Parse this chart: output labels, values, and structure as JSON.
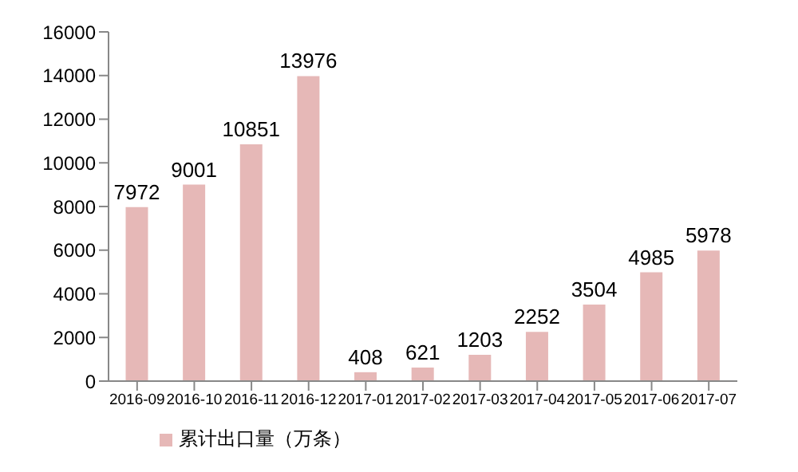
{
  "chart_data": {
    "type": "bar",
    "categories": [
      "2016-09",
      "2016-10",
      "2016-11",
      "2016-12",
      "2017-01",
      "2017-02",
      "2017-03",
      "2017-04",
      "2017-05",
      "2017-06",
      "2017-07"
    ],
    "series": [
      {
        "name": "累计出口量（万条）",
        "color": "#e6b8b7",
        "values": [
          7972,
          9001,
          10851,
          13976,
          408,
          621,
          1203,
          2252,
          3504,
          4985,
          5978
        ]
      }
    ],
    "ylim": [
      0,
      16000
    ],
    "yticks": [
      0,
      2000,
      4000,
      6000,
      8000,
      10000,
      12000,
      14000,
      16000
    ],
    "grid": false,
    "data_labels": true,
    "legend": "bottom left"
  }
}
